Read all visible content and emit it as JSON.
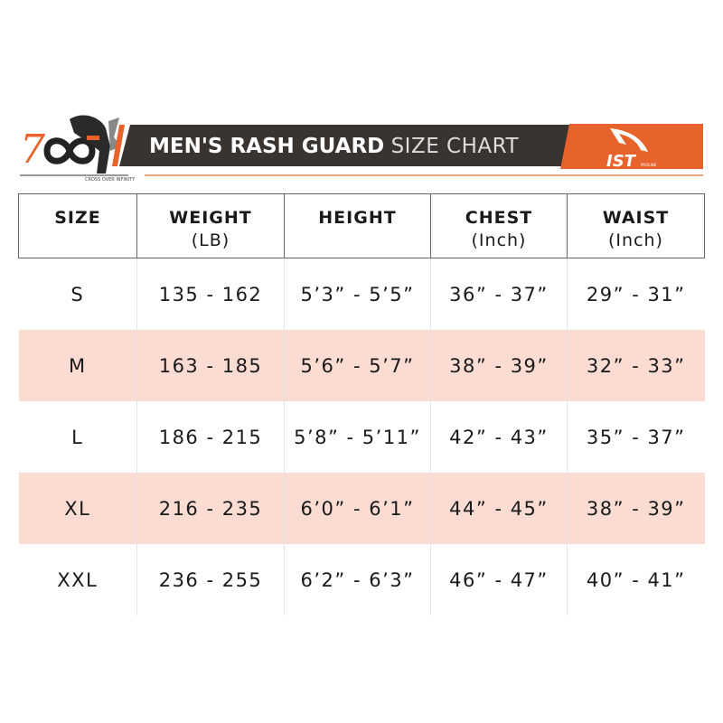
{
  "logo": {
    "name": "700",
    "tagline": "CROSS OVER INFINITY"
  },
  "banner": {
    "title_bold": "MEN'S  RASH GUARD",
    "title_light": "SIZE CHART",
    "brand": "IST",
    "brand_sub": "PROLINE"
  },
  "colors": {
    "accent": "#e8622c",
    "banner_dark": "#3a3431",
    "row_highlight": "#fadcd3"
  },
  "table": {
    "headers": [
      {
        "label": "SIZE",
        "unit": ""
      },
      {
        "label": "WEIGHT",
        "unit": "(LB)"
      },
      {
        "label": "HEIGHT",
        "unit": ""
      },
      {
        "label": "CHEST",
        "unit": "(Inch)"
      },
      {
        "label": "WAIST",
        "unit": "(Inch)"
      }
    ],
    "rows": [
      [
        "S",
        "135 - 162",
        "5’3” - 5’5”",
        "36” - 37”",
        "29” - 31”"
      ],
      [
        "M",
        "163 - 185",
        "5’6” - 5’7”",
        "38” - 39”",
        "32” - 33”"
      ],
      [
        "L",
        "186 - 215",
        "5’8” - 5’11”",
        "42” - 43”",
        "35” - 37”"
      ],
      [
        "XL",
        "216 - 235",
        "6’0” - 6’1”",
        "44” - 45”",
        "38” - 39”"
      ],
      [
        "XXL",
        "236 - 255",
        "6’2” - 6’3”",
        "46” - 47”",
        "40” - 41”"
      ]
    ]
  }
}
